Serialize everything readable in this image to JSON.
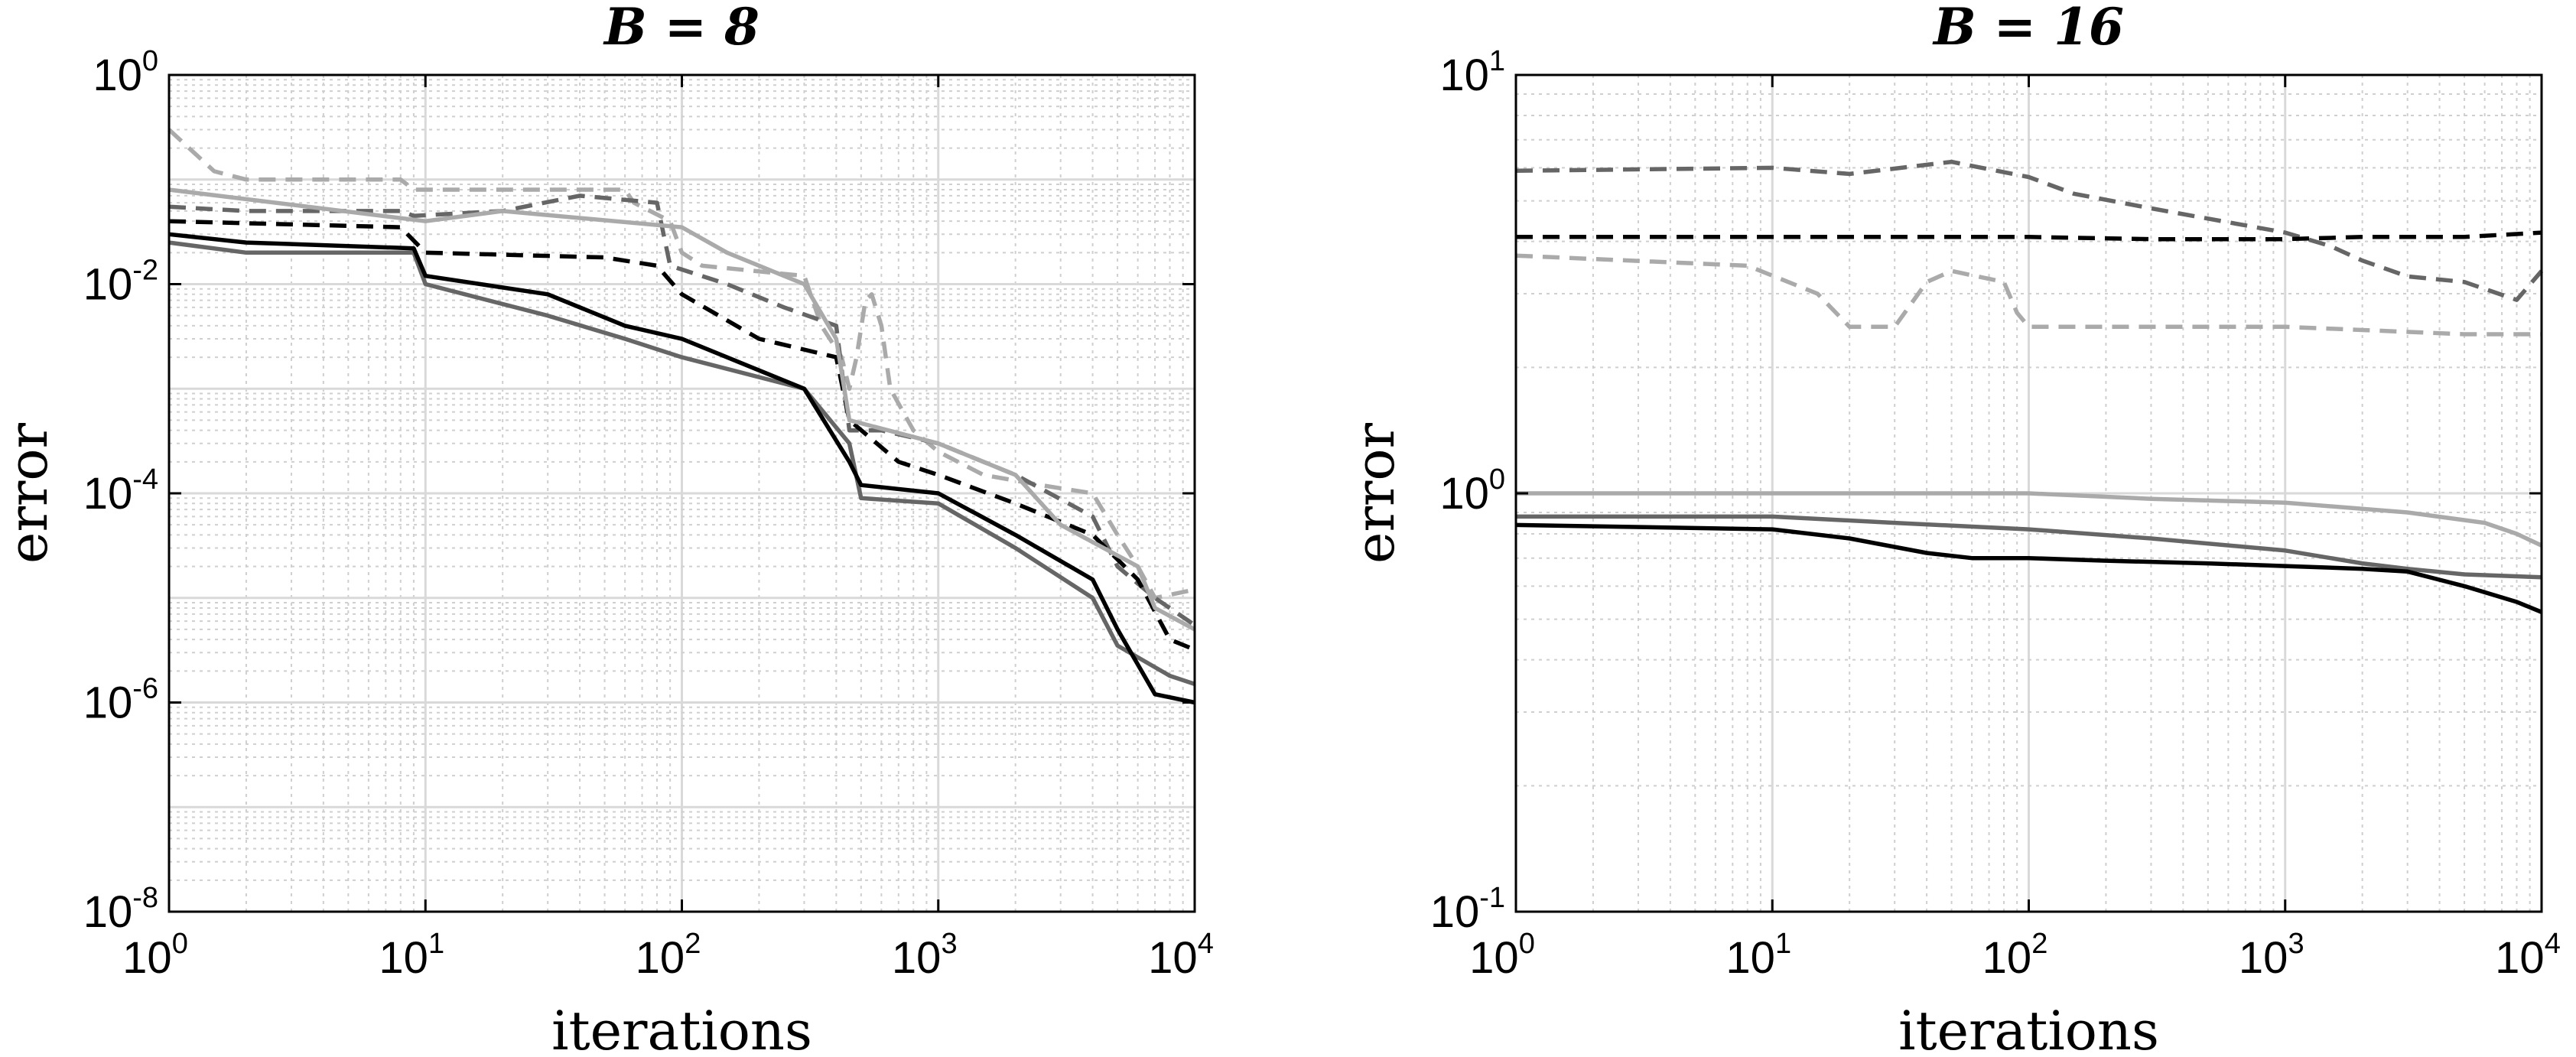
{
  "chart_data": [
    {
      "type": "line",
      "title": "B = 8",
      "xlabel": "iterations",
      "ylabel": "error",
      "xscale": "log",
      "yscale": "log",
      "xlim": [
        1,
        10000
      ],
      "ylim": [
        1e-08,
        1
      ],
      "grid": true,
      "legend": "none",
      "x_ticks": [
        {
          "base": "10",
          "exp": "0"
        },
        {
          "base": "10",
          "exp": "1"
        },
        {
          "base": "10",
          "exp": "2"
        },
        {
          "base": "10",
          "exp": "3"
        },
        {
          "base": "10",
          "exp": "4"
        }
      ],
      "y_ticks": [
        {
          "base": "10",
          "exp": "-8"
        },
        {
          "base": "10",
          "exp": "-6"
        },
        {
          "base": "10",
          "exp": "-4"
        },
        {
          "base": "10",
          "exp": "-2"
        },
        {
          "base": "10",
          "exp": "0"
        }
      ],
      "series": [
        {
          "style": "dashed",
          "color": "#aaaaaa",
          "points": [
            [
              1,
              0.3
            ],
            [
              1.5,
              0.12
            ],
            [
              2,
              0.1
            ],
            [
              8,
              0.1
            ],
            [
              9,
              0.08
            ],
            [
              60,
              0.08
            ],
            [
              65,
              0.06
            ],
            [
              90,
              0.04
            ],
            [
              100,
              0.02
            ],
            [
              120,
              0.015
            ],
            [
              300,
              0.012
            ],
            [
              350,
              0.004
            ],
            [
              420,
              0.002
            ],
            [
              450,
              0.001
            ],
            [
              480,
              0.002
            ],
            [
              520,
              0.007
            ],
            [
              550,
              0.008
            ],
            [
              600,
              0.004
            ],
            [
              650,
              0.001
            ],
            [
              800,
              0.0004
            ],
            [
              1000,
              0.00025
            ],
            [
              1500,
              0.00015
            ],
            [
              2500,
              0.00012
            ],
            [
              4000,
              0.0001
            ],
            [
              5000,
              4e-05
            ],
            [
              6000,
              2e-05
            ],
            [
              7000,
              1e-05
            ],
            [
              10000,
              1.2e-05
            ]
          ]
        },
        {
          "style": "dashed",
          "color": "#666666",
          "points": [
            [
              1,
              0.055
            ],
            [
              2,
              0.05
            ],
            [
              8,
              0.05
            ],
            [
              9,
              0.045
            ],
            [
              20,
              0.05
            ],
            [
              40,
              0.07
            ],
            [
              80,
              0.06
            ],
            [
              90,
              0.015
            ],
            [
              150,
              0.01
            ],
            [
              250,
              0.006
            ],
            [
              400,
              0.004
            ],
            [
              450,
              0.0004
            ],
            [
              600,
              0.0004
            ],
            [
              1000,
              0.0003
            ],
            [
              2000,
              0.00015
            ],
            [
              4000,
              6e-05
            ],
            [
              5000,
              2e-05
            ],
            [
              7000,
              1e-05
            ],
            [
              10000,
              5.5e-06
            ]
          ]
        },
        {
          "style": "dashed",
          "color": "#000000",
          "points": [
            [
              1,
              0.04
            ],
            [
              8,
              0.035
            ],
            [
              10,
              0.02
            ],
            [
              50,
              0.018
            ],
            [
              80,
              0.015
            ],
            [
              100,
              0.008
            ],
            [
              200,
              0.003
            ],
            [
              400,
              0.002
            ],
            [
              450,
              0.0005
            ],
            [
              700,
              0.0002
            ],
            [
              1000,
              0.00015
            ],
            [
              2000,
              8e-05
            ],
            [
              4000,
              4e-05
            ],
            [
              6000,
              1.5e-05
            ],
            [
              8000,
              4e-06
            ],
            [
              10000,
              3.2e-06
            ]
          ]
        },
        {
          "style": "solid",
          "color": "#aaaaaa",
          "points": [
            [
              1,
              0.08
            ],
            [
              10,
              0.04
            ],
            [
              20,
              0.05
            ],
            [
              100,
              0.035
            ],
            [
              150,
              0.02
            ],
            [
              300,
              0.01
            ],
            [
              400,
              0.003
            ],
            [
              450,
              0.0005
            ],
            [
              1000,
              0.0003
            ],
            [
              2000,
              0.00015
            ],
            [
              3000,
              5e-05
            ],
            [
              6000,
              2e-05
            ],
            [
              7000,
              8e-06
            ],
            [
              10000,
              5e-06
            ]
          ]
        },
        {
          "style": "solid",
          "color": "#666666",
          "points": [
            [
              1,
              0.025
            ],
            [
              2,
              0.02
            ],
            [
              9,
              0.02
            ],
            [
              10,
              0.01
            ],
            [
              30,
              0.005
            ],
            [
              60,
              0.003
            ],
            [
              100,
              0.002
            ],
            [
              300,
              0.001
            ],
            [
              450,
              0.0003
            ],
            [
              500,
              9e-05
            ],
            [
              1000,
              8e-05
            ],
            [
              2000,
              3e-05
            ],
            [
              4000,
              1e-05
            ],
            [
              5000,
              3.5e-06
            ],
            [
              8000,
              1.8e-06
            ],
            [
              10000,
              1.5e-06
            ]
          ]
        },
        {
          "style": "solid",
          "color": "#000000",
          "points": [
            [
              1,
              0.03
            ],
            [
              2,
              0.025
            ],
            [
              9,
              0.022
            ],
            [
              10,
              0.012
            ],
            [
              30,
              0.008
            ],
            [
              60,
              0.004
            ],
            [
              100,
              0.003
            ],
            [
              300,
              0.001
            ],
            [
              450,
              0.0002
            ],
            [
              500,
              0.00012
            ],
            [
              1000,
              0.0001
            ],
            [
              2000,
              4e-05
            ],
            [
              4000,
              1.5e-05
            ],
            [
              5000,
              5e-06
            ],
            [
              7000,
              1.2e-06
            ],
            [
              10000,
              1e-06
            ]
          ]
        }
      ]
    },
    {
      "type": "line",
      "title": "B = 16",
      "xlabel": "iterations",
      "ylabel": "error",
      "xscale": "log",
      "yscale": "log",
      "xlim": [
        1,
        10000
      ],
      "ylim": [
        0.1,
        10
      ],
      "grid": true,
      "legend": "none",
      "x_ticks": [
        {
          "base": "10",
          "exp": "0"
        },
        {
          "base": "10",
          "exp": "1"
        },
        {
          "base": "10",
          "exp": "2"
        },
        {
          "base": "10",
          "exp": "3"
        },
        {
          "base": "10",
          "exp": "4"
        }
      ],
      "y_ticks": [
        {
          "base": "10",
          "exp": "-1"
        },
        {
          "base": "10",
          "exp": "0"
        },
        {
          "base": "10",
          "exp": "1"
        }
      ],
      "series": [
        {
          "style": "dashed",
          "color": "#666666",
          "points": [
            [
              1,
              5.9
            ],
            [
              10,
              6.0
            ],
            [
              20,
              5.8
            ],
            [
              50,
              6.2
            ],
            [
              100,
              5.7
            ],
            [
              150,
              5.2
            ],
            [
              300,
              4.8
            ],
            [
              1000,
              4.2
            ],
            [
              1500,
              3.9
            ],
            [
              2000,
              3.6
            ],
            [
              3000,
              3.3
            ],
            [
              5000,
              3.2
            ],
            [
              8000,
              2.9
            ],
            [
              10000,
              3.4
            ]
          ]
        },
        {
          "style": "dashed",
          "color": "#000000",
          "points": [
            [
              1,
              4.1
            ],
            [
              10,
              4.1
            ],
            [
              100,
              4.1
            ],
            [
              300,
              4.05
            ],
            [
              1000,
              4.05
            ],
            [
              2000,
              4.1
            ],
            [
              5000,
              4.1
            ],
            [
              10000,
              4.2
            ]
          ]
        },
        {
          "style": "dashed",
          "color": "#aaaaaa",
          "points": [
            [
              1,
              3.7
            ],
            [
              8,
              3.5
            ],
            [
              15,
              3.0
            ],
            [
              20,
              2.5
            ],
            [
              30,
              2.5
            ],
            [
              40,
              3.2
            ],
            [
              50,
              3.4
            ],
            [
              80,
              3.2
            ],
            [
              90,
              2.7
            ],
            [
              100,
              2.5
            ],
            [
              1000,
              2.5
            ],
            [
              5000,
              2.4
            ],
            [
              10000,
              2.4
            ]
          ]
        },
        {
          "style": "solid",
          "color": "#aaaaaa",
          "points": [
            [
              1,
              1.0
            ],
            [
              10,
              1.0
            ],
            [
              100,
              1.0
            ],
            [
              300,
              0.97
            ],
            [
              1000,
              0.95
            ],
            [
              3000,
              0.9
            ],
            [
              6000,
              0.85
            ],
            [
              8000,
              0.8
            ],
            [
              10000,
              0.75
            ]
          ]
        },
        {
          "style": "solid",
          "color": "#666666",
          "points": [
            [
              1,
              0.88
            ],
            [
              10,
              0.88
            ],
            [
              30,
              0.85
            ],
            [
              100,
              0.82
            ],
            [
              300,
              0.78
            ],
            [
              1000,
              0.73
            ],
            [
              2000,
              0.68
            ],
            [
              3000,
              0.66
            ],
            [
              5000,
              0.64
            ],
            [
              10000,
              0.63
            ]
          ]
        },
        {
          "style": "solid",
          "color": "#000000",
          "points": [
            [
              1,
              0.84
            ],
            [
              10,
              0.82
            ],
            [
              20,
              0.78
            ],
            [
              40,
              0.72
            ],
            [
              60,
              0.7
            ],
            [
              100,
              0.7
            ],
            [
              200,
              0.69
            ],
            [
              500,
              0.68
            ],
            [
              1000,
              0.67
            ],
            [
              2000,
              0.66
            ],
            [
              3000,
              0.65
            ],
            [
              5000,
              0.6
            ],
            [
              8000,
              0.55
            ],
            [
              10000,
              0.52
            ]
          ]
        }
      ]
    }
  ]
}
